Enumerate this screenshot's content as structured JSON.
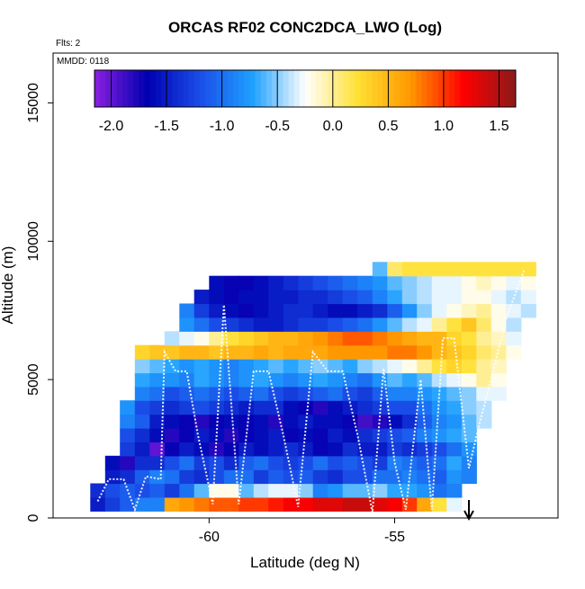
{
  "chart_data": {
    "type": "heatmap",
    "title": "ORCAS RF02 CONC2DCA_LWO (Log)",
    "subtitles": [
      "Flts: 2",
      "MMDD: 0118"
    ],
    "xlabel": "Latitude (deg N)",
    "ylabel": "Altitude (m)",
    "xlim": [
      -64.2,
      -50.6
    ],
    "ylim": [
      0,
      16800
    ],
    "x_ticks": [
      -60,
      -55
    ],
    "x_tick_labels": [
      "-60",
      "-55"
    ],
    "y_ticks": [
      0,
      5000,
      10000,
      15000
    ],
    "y_tick_labels": [
      "0",
      "5000",
      "10000",
      "15000"
    ],
    "colorbar": {
      "range": [
        -2.15,
        1.65
      ],
      "ticks": [
        -2.0,
        -1.5,
        -1.0,
        -0.5,
        0.0,
        0.5,
        1.0,
        1.5
      ],
      "tick_labels": [
        "-2.0",
        "-1.5",
        "-1.0",
        "-0.5",
        "0.0",
        "0.5",
        "1.0",
        "1.5"
      ],
      "colors": [
        "#8b1fe0",
        "#0000b0",
        "#1a4de8",
        "#1ea0ff",
        "#ffffff",
        "#ffe033",
        "#ff9800",
        "#ff0000",
        "#8b1a1a"
      ]
    },
    "arrow_marker_lat": -53.0,
    "latitude_bins": [
      -63.0,
      -62.6,
      -62.2,
      -61.8,
      -61.4,
      -61.0,
      -60.6,
      -60.2,
      -59.8,
      -59.4,
      -59.0,
      -58.6,
      -58.2,
      -57.8,
      -57.4,
      -57.0,
      -56.6,
      -56.2,
      -55.8,
      -55.4,
      -55.0,
      -54.6,
      -54.2,
      -53.8,
      -53.4,
      -53.0,
      -52.6,
      -52.2,
      -51.8,
      -51.4
    ],
    "altitude_bins": [
      500,
      1000,
      1500,
      2000,
      2500,
      3000,
      3500,
      4000,
      4500,
      5000,
      5500,
      6000,
      6500,
      7000,
      7500,
      8000,
      8500,
      9000
    ],
    "values": [
      [
        -1.5,
        -1.3,
        -1.1,
        -0.9,
        -0.9,
        0.6,
        0.7,
        0.8,
        0.9,
        0.9,
        1.0,
        1.0,
        1.1,
        1.2,
        1.2,
        1.3,
        1.3,
        1.4,
        1.4,
        1.3,
        1.2,
        1.0,
        0.6,
        0.2,
        -0.3,
        null,
        null,
        null,
        null,
        null
      ],
      [
        -1.4,
        -1.2,
        -1.1,
        -1.2,
        -1.1,
        -1.3,
        -1.0,
        -0.6,
        -0.2,
        -0.2,
        -0.6,
        -0.4,
        -0.3,
        -0.3,
        -0.5,
        -0.9,
        -0.8,
        -0.6,
        -0.6,
        -0.5,
        -0.7,
        -0.7,
        -0.8,
        -1.0,
        -0.9,
        null,
        null,
        null,
        null,
        null
      ],
      [
        null,
        -1.5,
        -1.4,
        -1.1,
        -0.9,
        -1.0,
        -1.3,
        -1.4,
        -1.2,
        -1.0,
        -1.0,
        -1.3,
        -1.1,
        -1.2,
        -1.1,
        -1.3,
        -1.4,
        -1.2,
        -1.2,
        -1.0,
        -1.0,
        -0.9,
        -1.0,
        -1.1,
        -0.8,
        -0.9,
        null,
        null,
        null,
        null
      ],
      [
        null,
        -1.6,
        -1.8,
        -1.4,
        -1.4,
        -1.2,
        -1.0,
        -1.3,
        -1.2,
        -1.4,
        -1.1,
        -1.0,
        -1.2,
        -1.3,
        -1.2,
        -1.0,
        -1.2,
        -1.1,
        -1.2,
        -1.3,
        -0.9,
        -1.0,
        -1.1,
        -1.0,
        -0.7,
        -0.9,
        null,
        null,
        null,
        null
      ],
      [
        null,
        null,
        -1.3,
        -1.5,
        -2.0,
        -1.7,
        -1.5,
        -1.6,
        -1.8,
        -1.7,
        -1.5,
        -1.6,
        -1.5,
        -1.4,
        -1.5,
        -1.7,
        -1.6,
        -1.4,
        -1.5,
        -1.5,
        -1.3,
        -1.4,
        -1.3,
        -1.2,
        -1.0,
        -0.8,
        null,
        null,
        null,
        null
      ],
      [
        null,
        null,
        -1.2,
        -1.4,
        -1.6,
        -1.8,
        -1.7,
        -1.5,
        -1.6,
        -1.8,
        -1.7,
        -1.6,
        -1.5,
        -1.7,
        -1.6,
        -1.7,
        -1.5,
        -1.6,
        -1.4,
        -1.3,
        -1.2,
        -1.1,
        -0.9,
        -0.8,
        -0.7,
        -0.6,
        null,
        null,
        null,
        null
      ],
      [
        null,
        null,
        -0.9,
        -1.1,
        -1.5,
        -1.6,
        -1.7,
        -1.8,
        -1.7,
        -1.6,
        -1.7,
        -1.6,
        -1.8,
        -1.6,
        -1.5,
        -1.6,
        -1.6,
        -1.7,
        -1.9,
        -1.8,
        -1.6,
        -1.4,
        -1.1,
        -0.9,
        -0.8,
        -0.6,
        -0.4,
        null,
        null,
        null
      ],
      [
        null,
        null,
        -0.8,
        -1.2,
        -1.3,
        -1.4,
        -1.3,
        -1.2,
        -1.3,
        -1.4,
        -1.5,
        -1.4,
        -1.4,
        -1.6,
        -1.7,
        -1.8,
        -1.6,
        -1.5,
        -1.4,
        -1.3,
        -1.2,
        -1.2,
        -1.0,
        -0.8,
        -0.7,
        -0.5,
        -0.4,
        null,
        null,
        null
      ],
      [
        null,
        null,
        null,
        -0.9,
        -1.0,
        -1.2,
        -1.1,
        -1.0,
        -1.1,
        -1.2,
        -1.1,
        -1.0,
        -1.2,
        -1.3,
        -1.2,
        -1.1,
        -1.0,
        -1.2,
        -1.3,
        -1.1,
        -0.9,
        -0.9,
        -0.8,
        -0.7,
        -0.6,
        -0.5,
        -0.3,
        -0.3,
        null,
        null
      ],
      [
        null,
        null,
        null,
        -0.7,
        -0.8,
        -0.8,
        -0.9,
        -0.7,
        -0.8,
        -0.9,
        -0.8,
        -0.7,
        -0.8,
        -0.9,
        -0.8,
        -0.7,
        -0.8,
        -0.9,
        -1.0,
        -0.8,
        -0.6,
        -0.7,
        -0.6,
        -0.4,
        -0.3,
        -0.2,
        0.0,
        -0.2,
        null,
        null
      ],
      [
        null,
        null,
        null,
        -0.5,
        -0.6,
        -0.7,
        -0.8,
        -0.7,
        -0.8,
        -0.9,
        -0.8,
        -0.7,
        -0.6,
        -0.7,
        -0.6,
        -0.5,
        -0.6,
        -0.7,
        -0.5,
        -0.4,
        -0.3,
        -0.2,
        0.0,
        0.2,
        0.3,
        0.2,
        0.0,
        -0.1,
        null,
        null
      ],
      [
        null,
        null,
        null,
        0.3,
        0.4,
        0.4,
        0.5,
        0.5,
        0.4,
        0.5,
        0.5,
        0.6,
        0.5,
        0.6,
        0.6,
        0.6,
        0.7,
        0.7,
        0.7,
        0.7,
        0.8,
        0.8,
        0.7,
        0.5,
        0.4,
        0.3,
        0.1,
        0.0,
        -0.2,
        null
      ],
      [
        null,
        null,
        null,
        null,
        null,
        -0.4,
        -0.3,
        -0.2,
        0.0,
        0.2,
        0.3,
        0.4,
        0.5,
        0.5,
        0.6,
        0.7,
        0.8,
        0.9,
        0.9,
        0.8,
        0.7,
        0.6,
        0.5,
        0.5,
        0.3,
        0.2,
        0.0,
        -0.1,
        -0.3,
        null
      ],
      [
        null,
        null,
        null,
        null,
        null,
        null,
        -0.8,
        -1.0,
        -1.2,
        -1.3,
        -1.4,
        -1.5,
        -1.5,
        -1.4,
        -1.3,
        -1.3,
        -1.2,
        -1.1,
        -1.0,
        -0.8,
        -0.6,
        -0.4,
        -0.3,
        0.0,
        0.2,
        0.4,
        0.1,
        -0.2,
        -0.4,
        null
      ],
      [
        null,
        null,
        null,
        null,
        null,
        null,
        -0.9,
        -1.3,
        -1.5,
        -1.6,
        -1.7,
        -1.6,
        -1.5,
        -1.4,
        -1.4,
        -1.5,
        -1.6,
        -1.6,
        -1.5,
        -1.4,
        -1.1,
        -0.8,
        -0.5,
        -0.3,
        -0.2,
        -0.1,
        0.0,
        -0.2,
        -0.3,
        -0.4
      ],
      [
        null,
        null,
        null,
        null,
        null,
        null,
        null,
        -1.5,
        -1.6,
        -1.7,
        -1.6,
        -1.6,
        -1.5,
        -1.5,
        -1.4,
        -1.4,
        -1.3,
        -1.2,
        -1.1,
        -0.9,
        -0.7,
        -0.5,
        -0.4,
        -0.3,
        -0.3,
        -0.2,
        -0.2,
        -0.3,
        -0.4,
        -0.3
      ],
      [
        null,
        null,
        null,
        null,
        null,
        null,
        null,
        null,
        -1.6,
        -1.7,
        -1.7,
        -1.6,
        -1.5,
        -1.4,
        -1.3,
        -1.2,
        -1.1,
        -1.0,
        -0.9,
        -0.8,
        -0.6,
        -0.5,
        -0.4,
        -0.3,
        -0.3,
        -0.2,
        -0.1,
        -0.2,
        -0.3,
        -0.2
      ],
      [
        null,
        null,
        null,
        null,
        null,
        null,
        null,
        null,
        null,
        null,
        null,
        null,
        null,
        null,
        null,
        null,
        null,
        null,
        null,
        -0.6,
        0.1,
        0.2,
        0.2,
        0.2,
        0.2,
        0.2,
        0.2,
        0.2,
        0.2,
        0.2
      ]
    ],
    "flight_track_lat": [
      -63.0,
      -62.7,
      -62.3,
      -62.0,
      -61.7,
      -61.3,
      -61.2,
      -60.9,
      -60.6,
      -60.3,
      -59.9,
      -59.6,
      -59.2,
      -58.8,
      -58.4,
      -58.0,
      -57.6,
      -57.2,
      -56.8,
      -56.4,
      -56.0,
      -55.6,
      -55.3,
      -55.0,
      -54.7,
      -54.3,
      -54.0,
      -53.7,
      -53.4,
      -53.0,
      -52.7,
      -52.4,
      -52.0,
      -51.5
    ],
    "flight_track_alt": [
      600,
      1400,
      1400,
      300,
      1500,
      1400,
      6000,
      5300,
      5300,
      3000,
      500,
      7700,
      500,
      5300,
      5300,
      3000,
      400,
      6000,
      5300,
      5300,
      3000,
      200,
      5400,
      2000,
      300,
      5000,
      300,
      6500,
      6500,
      1800,
      3500,
      5000,
      7200,
      9000
    ]
  }
}
